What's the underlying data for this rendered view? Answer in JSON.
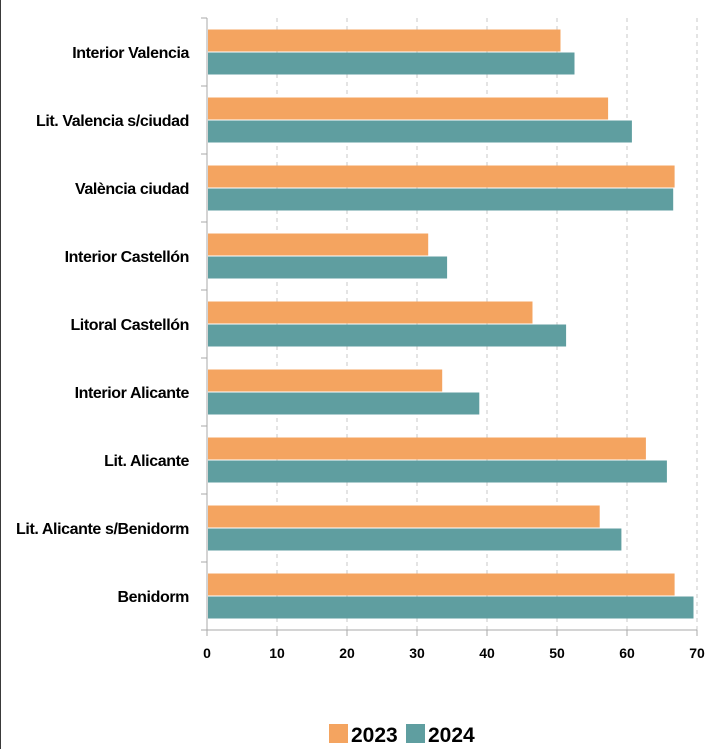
{
  "chart_data": {
    "type": "bar",
    "orientation": "horizontal",
    "title": "",
    "xlabel": "",
    "ylabel": "",
    "categories": [
      "Interior Valencia",
      "Lit. Valencia s/ciudad",
      "València ciudad",
      "Interior Castellón",
      "Litoral Castellón",
      "Interior Alicante",
      "Lit. Alicante",
      "Lit. Alicante s/Benidorm",
      "Benidorm"
    ],
    "series": [
      {
        "name": "2023",
        "color": "#F4A460",
        "values": [
          50.5,
          57.3,
          66.8,
          31.6,
          46.5,
          33.6,
          62.7,
          56.1,
          66.8
        ]
      },
      {
        "name": "2024",
        "color": "#5F9EA0",
        "values": [
          52.5,
          60.7,
          66.6,
          34.3,
          51.3,
          38.9,
          65.7,
          59.2,
          69.5
        ]
      }
    ],
    "xlim": [
      0,
      70
    ],
    "xticks": [
      "0",
      "10",
      "20",
      "30",
      "40",
      "50",
      "60",
      "70"
    ],
    "grid": "vertical dashed",
    "legend": "bottom-center"
  }
}
